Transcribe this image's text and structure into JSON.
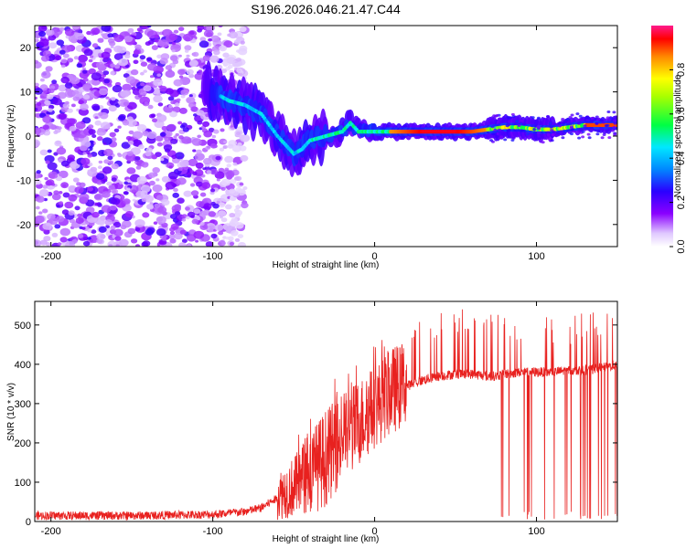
{
  "chart_data": [
    {
      "type": "heatmap",
      "title": "S196.2026.046.21.47.C44",
      "xlabel": "Height of straight line (km)",
      "ylabel": "Frequency (Hz)",
      "xlim": [
        -210,
        150
      ],
      "ylim": [
        -25,
        25
      ],
      "xticks": [
        -200,
        -100,
        0,
        100
      ],
      "yticks": [
        -20,
        -10,
        0,
        10,
        20
      ],
      "colorbar": {
        "label": "Normalized spectral amplitude",
        "range": [
          0,
          1
        ],
        "ticks": [
          0.0,
          0.2,
          0.4,
          0.6,
          0.8
        ]
      },
      "ridge": {
        "x": [
          -100,
          -90,
          -80,
          -70,
          -60,
          -50,
          -45,
          -40,
          -30,
          -20,
          -15,
          -10,
          0,
          10,
          20,
          40,
          60,
          70,
          80,
          90,
          100,
          110,
          120,
          130,
          140,
          150
        ],
        "y": [
          10,
          8,
          7,
          5,
          0,
          -4,
          -3,
          -1,
          0,
          1,
          3,
          1,
          1,
          1,
          1,
          1,
          1,
          1.5,
          2,
          2,
          1.5,
          1.5,
          2,
          2.5,
          2.5,
          2.5
        ]
      }
    },
    {
      "type": "line",
      "title": "",
      "xlabel": "Height of straight line (km)",
      "ylabel": "SNR (10 * v/v)",
      "xlim": [
        -210,
        150
      ],
      "ylim": [
        0,
        560
      ],
      "xticks": [
        -200,
        -100,
        0,
        100
      ],
      "yticks": [
        0,
        100,
        200,
        300,
        400,
        500
      ],
      "color": "#e8211f",
      "series": [
        {
          "name": "SNR",
          "x": [
            -210,
            -150,
            -100,
            -80,
            -70,
            -60,
            -50,
            -40,
            -30,
            -20,
            -10,
            0,
            10,
            20,
            30,
            40,
            50,
            60,
            70,
            75,
            80,
            90,
            100,
            110,
            120,
            130,
            140,
            150
          ],
          "baseline": [
            15,
            15,
            18,
            25,
            35,
            60,
            80,
            110,
            150,
            200,
            240,
            280,
            320,
            345,
            360,
            370,
            375,
            375,
            370,
            370,
            375,
            380,
            380,
            380,
            385,
            385,
            390,
            400
          ],
          "peaks": [
            25,
            28,
            35,
            45,
            130,
            150,
            190,
            260,
            330,
            360,
            400,
            430,
            480,
            500,
            520,
            535,
            540,
            540,
            540,
            540,
            530,
            520,
            520,
            525,
            530,
            535,
            540,
            550
          ]
        }
      ]
    }
  ]
}
